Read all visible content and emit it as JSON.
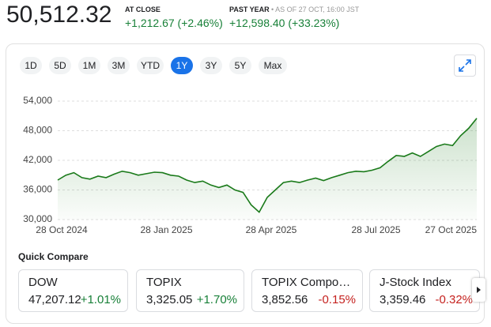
{
  "header": {
    "price": "50,512.32",
    "close_label": "AT CLOSE",
    "close_change": "+1,212.67 (+2.46%)",
    "period_label": "PAST YEAR",
    "as_of": "• AS OF 27 OCT, 16:00 JST",
    "period_change": "+12,598.40 (+33.23%)"
  },
  "ranges": {
    "items": [
      "1D",
      "5D",
      "1M",
      "3M",
      "YTD",
      "1Y",
      "3Y",
      "5Y",
      "Max"
    ],
    "active": "1Y"
  },
  "chart_data": {
    "type": "area",
    "color": "#1a7a1a",
    "categories": [
      "28 Oct 2024",
      null,
      null,
      null,
      null,
      null,
      null,
      null,
      null,
      null,
      null,
      null,
      null,
      "28 Jan 2025",
      null,
      null,
      null,
      null,
      null,
      null,
      null,
      null,
      null,
      null,
      null,
      null,
      "28 Apr 2025",
      null,
      null,
      null,
      null,
      null,
      null,
      null,
      null,
      null,
      null,
      null,
      null,
      "28 Jul 2025",
      null,
      null,
      null,
      null,
      null,
      null,
      null,
      null,
      null,
      null,
      null,
      null,
      "27 Oct 2025"
    ],
    "values": [
      38000,
      39000,
      39500,
      38500,
      38200,
      38800,
      38500,
      39200,
      39800,
      39500,
      39000,
      39300,
      39600,
      39500,
      39000,
      38800,
      38000,
      37500,
      37800,
      37000,
      36500,
      37000,
      36000,
      35500,
      33000,
      31500,
      34500,
      36000,
      37500,
      37800,
      37500,
      38000,
      38400,
      37900,
      38500,
      39000,
      39500,
      39800,
      39700,
      40000,
      40500,
      41800,
      43000,
      42800,
      43500,
      42800,
      43800,
      44800,
      45300,
      45000,
      47000,
      48500,
      50512.32
    ],
    "ylim": [
      30000,
      54000
    ],
    "yticks": [
      {
        "value": 30000,
        "label": "30,000"
      },
      {
        "value": 36000,
        "label": "36,000"
      },
      {
        "value": 42000,
        "label": "42,000"
      },
      {
        "value": 48000,
        "label": "48,000"
      },
      {
        "value": 54000,
        "label": "54,000"
      }
    ],
    "grid": true
  },
  "compare": {
    "title": "Quick Compare",
    "items": [
      {
        "name": "DOW",
        "value": "47,207.12",
        "change": "+1.01%",
        "direction": "up"
      },
      {
        "name": "TOPIX",
        "value": "3,325.05",
        "change": "+1.70%",
        "direction": "up"
      },
      {
        "name": "TOPIX Compo…",
        "value": "3,852.56",
        "change": "-0.15%",
        "direction": "down"
      },
      {
        "name": "J-Stock Index",
        "value": "3,359.46",
        "change": "-0.32%",
        "direction": "down"
      }
    ]
  }
}
